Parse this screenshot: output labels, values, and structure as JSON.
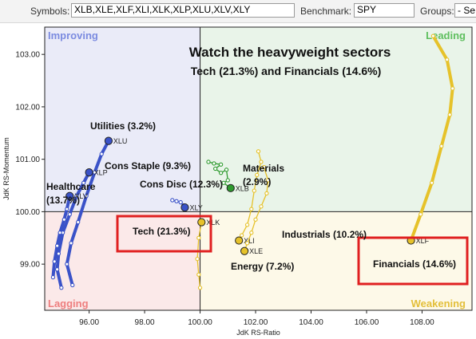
{
  "toolbar": {
    "symbols_label": "Symbols:",
    "symbols_value": "XLB,XLE,XLF,XLI,XLK,XLP,XLU,XLV,XLY",
    "benchmark_label": "Benchmark:",
    "benchmark_value": "SPY",
    "groups_label": "Groups:",
    "groups_value": "- Se"
  },
  "annotations": {
    "headline": "Watch the heavyweight sectors",
    "subheadline": "Tech (21.3%) and Financials (14.6%)"
  },
  "chart_data": {
    "type": "scatter",
    "title": "",
    "xlabel": "JdK RS-Ratio",
    "ylabel": "JdK RS-Momentum",
    "xlim": [
      94.4,
      109.8
    ],
    "ylim": [
      98.12,
      103.52
    ],
    "center": [
      100,
      100
    ],
    "x_ticks": [
      96,
      98,
      100,
      102,
      104,
      106,
      108
    ],
    "x_tick_labels": [
      "96.00",
      "98.00",
      "100.00",
      "102.00",
      "104.00",
      "106.00",
      "108.00"
    ],
    "y_ticks": [
      99,
      100,
      101,
      102,
      103
    ],
    "y_tick_labels": [
      "99.00",
      "100.00",
      "101.00",
      "102.00",
      "103.00"
    ],
    "quadrants": {
      "improving": {
        "label": "Improving",
        "color": "#eaebf8",
        "label_color": "#7b8be0"
      },
      "leading": {
        "label": "Leading",
        "color": "#e9f4e9",
        "label_color": "#5fbf5f"
      },
      "lagging": {
        "label": "Lagging",
        "color": "#fbe9e9",
        "label_color": "#ee7f7f"
      },
      "weakening": {
        "label": "Weakening",
        "color": "#fdf9e8",
        "label_color": "#e3bf3a"
      }
    },
    "series": [
      {
        "name": "XLU",
        "label": "Utilities (3.2%)",
        "color": "#3a52c8",
        "style": "thick",
        "points": [
          [
            95.4,
            98.6
          ],
          [
            95.2,
            99.0
          ],
          [
            95.35,
            99.4
          ],
          [
            95.6,
            99.8
          ],
          [
            95.9,
            100.3
          ],
          [
            96.2,
            100.75
          ],
          [
            96.45,
            101.1
          ],
          [
            96.7,
            101.35
          ]
        ]
      },
      {
        "name": "XLP",
        "label": "Cons Staple (9.3%)",
        "color": "#3a52c8",
        "style": "thick",
        "points": [
          [
            95.0,
            98.55
          ],
          [
            94.85,
            98.9
          ],
          [
            94.9,
            99.2
          ],
          [
            95.05,
            99.6
          ],
          [
            95.3,
            99.95
          ],
          [
            95.55,
            100.3
          ],
          [
            95.8,
            100.55
          ],
          [
            96.0,
            100.75
          ]
        ]
      },
      {
        "name": "XLV",
        "label": "Healthcare (13.7%)",
        "color": "#3a52c8",
        "style": "thick",
        "points": [
          [
            94.7,
            98.75
          ],
          [
            94.75,
            99.05
          ],
          [
            94.85,
            99.35
          ],
          [
            94.95,
            99.6
          ],
          [
            95.1,
            99.85
          ],
          [
            95.2,
            100.05
          ],
          [
            95.3,
            100.3
          ]
        ]
      },
      {
        "name": "XLY",
        "label": "Cons Disc (12.3%)",
        "color": "#3a52c8",
        "style": "thin",
        "points": [
          [
            99.0,
            100.22
          ],
          [
            99.15,
            100.2
          ],
          [
            99.3,
            100.18
          ],
          [
            99.4,
            100.12
          ],
          [
            99.45,
            100.08
          ]
        ]
      },
      {
        "name": "XLB",
        "label": "Materials (2.9%)",
        "color": "#2e9a2e",
        "style": "thin",
        "points": [
          [
            100.3,
            100.95
          ],
          [
            100.5,
            100.92
          ],
          [
            100.75,
            100.9
          ],
          [
            100.55,
            100.82
          ],
          [
            100.75,
            100.74
          ],
          [
            100.95,
            100.8
          ],
          [
            101.0,
            100.6
          ],
          [
            100.85,
            100.55
          ],
          [
            101.1,
            100.45
          ]
        ]
      },
      {
        "name": "XLK",
        "label": "Tech (21.3%)",
        "color": "#e6c22a",
        "style": "thin",
        "points": [
          [
            100.0,
            98.55
          ],
          [
            99.95,
            98.8
          ],
          [
            99.9,
            99.1
          ],
          [
            99.95,
            99.5
          ],
          [
            100.05,
            99.8
          ]
        ]
      },
      {
        "name": "XLI",
        "label": "Industrials (10.2%)",
        "color": "#e6c22a",
        "style": "thin",
        "points": [
          [
            102.1,
            101.15
          ],
          [
            102.2,
            100.95
          ],
          [
            102.05,
            100.7
          ],
          [
            101.95,
            100.4
          ],
          [
            101.85,
            100.05
          ],
          [
            101.7,
            99.75
          ],
          [
            101.5,
            99.55
          ],
          [
            101.4,
            99.45
          ]
        ]
      },
      {
        "name": "XLE",
        "label": "Energy (7.2%)",
        "color": "#e6c22a",
        "style": "thin",
        "points": [
          [
            102.3,
            100.85
          ],
          [
            102.45,
            100.6
          ],
          [
            102.4,
            100.35
          ],
          [
            102.2,
            100.1
          ],
          [
            102.0,
            99.85
          ],
          [
            101.85,
            99.6
          ],
          [
            101.7,
            99.4
          ],
          [
            101.6,
            99.25
          ]
        ]
      },
      {
        "name": "XLF",
        "label": "Financials (14.6%)",
        "color": "#e6c22a",
        "style": "thick",
        "points": [
          [
            108.4,
            103.35
          ],
          [
            108.9,
            102.9
          ],
          [
            109.1,
            102.35
          ],
          [
            109.0,
            101.85
          ],
          [
            108.7,
            101.25
          ],
          [
            108.35,
            100.55
          ],
          [
            107.95,
            99.95
          ],
          [
            107.6,
            99.45
          ]
        ]
      }
    ]
  }
}
